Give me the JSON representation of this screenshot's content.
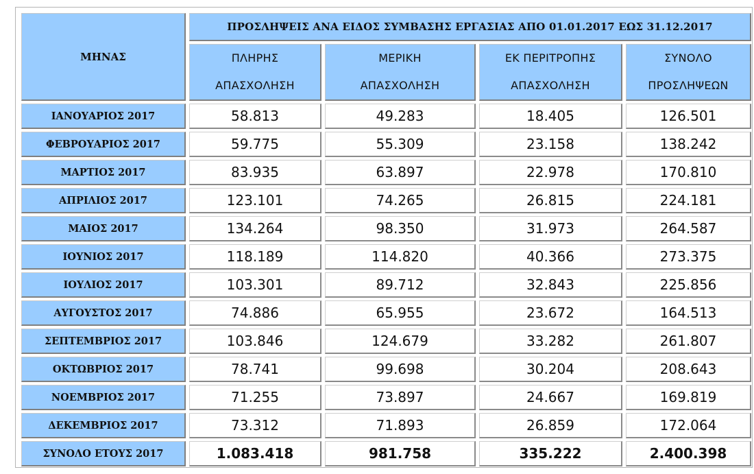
{
  "table": {
    "title": "ΠΡΟΣΛΗΨΕΙΣ ΑΝΑ ΕΙΔΟΣ  ΣΥΜΒΑΣΗΣ ΕΡΓΑΣΙΑΣ ΑΠΟ  01.01.2017  ΕΩΣ  31.12.2017",
    "month_header": "ΜΗΝΑΣ",
    "columns": [
      {
        "line1": "ΠΛΗΡΗΣ",
        "line2": "ΑΠΑΣΧΟΛΗΣΗ"
      },
      {
        "line1": "ΜΕΡΙΚΗ",
        "line2": "ΑΠΑΣΧΟΛΗΣΗ"
      },
      {
        "line1": "ΕΚ ΠΕΡΙΤΡΟΠΗΣ",
        "line2": "ΑΠΑΣΧΟΛΗΣΗ"
      },
      {
        "line1": "ΣΥΝΟΛΟ",
        "line2": "ΠΡΟΣΛΗΨΕΩΝ"
      }
    ],
    "rows": [
      {
        "month": "ΙΑΝΟΥΑΡΙΟΣ 2017",
        "full": "58.813",
        "part": "49.283",
        "rotation": "18.405",
        "total": "126.501"
      },
      {
        "month": "ΦΕΒΡΟΥΑΡΙΟΣ 2017",
        "full": "59.775",
        "part": "55.309",
        "rotation": "23.158",
        "total": "138.242"
      },
      {
        "month": "ΜΑΡΤΙΟΣ 2017",
        "full": "83.935",
        "part": "63.897",
        "rotation": "22.978",
        "total": "170.810"
      },
      {
        "month": "ΑΠΡΙΛΙΟΣ 2017",
        "full": "123.101",
        "part": "74.265",
        "rotation": "26.815",
        "total": "224.181"
      },
      {
        "month": "ΜΑΙΟΣ 2017",
        "full": "134.264",
        "part": "98.350",
        "rotation": "31.973",
        "total": "264.587"
      },
      {
        "month": "ΙΟΥΝΙΟΣ 2017",
        "full": "118.189",
        "part": "114.820",
        "rotation": "40.366",
        "total": "273.375"
      },
      {
        "month": "ΙΟΥΛΙΟΣ 2017",
        "full": "103.301",
        "part": "89.712",
        "rotation": "32.843",
        "total": "225.856"
      },
      {
        "month": "ΑΥΓΟΥΣΤΟΣ 2017",
        "full": "74.886",
        "part": "65.955",
        "rotation": "23.672",
        "total": "164.513"
      },
      {
        "month": "ΣΕΠΤΕΜΒΡΙΟΣ 2017",
        "full": "103.846",
        "part": "124.679",
        "rotation": "33.282",
        "total": "261.807"
      },
      {
        "month": "ΟΚΤΩΒΡΙΟΣ 2017",
        "full": "78.741",
        "part": "99.698",
        "rotation": "30.204",
        "total": "208.643"
      },
      {
        "month": "ΝΟΕΜΒΡΙΟΣ 2017",
        "full": "71.255",
        "part": "73.897",
        "rotation": "24.667",
        "total": "169.819"
      },
      {
        "month": "ΔΕΚΕΜΒΡΙΟΣ 2017",
        "full": "73.312",
        "part": "71.893",
        "rotation": "26.859",
        "total": "172.064"
      }
    ],
    "totals": {
      "month": "ΣΥΝΟΛΟ  ΕΤΟΥΣ 2017",
      "full": "1.083.418",
      "part": "981.758",
      "rotation": "335.222",
      "total": "2.400.398"
    }
  },
  "colors": {
    "header_fill": "#99ccff",
    "cell_fill": "#ffffff",
    "text": "#111111"
  }
}
